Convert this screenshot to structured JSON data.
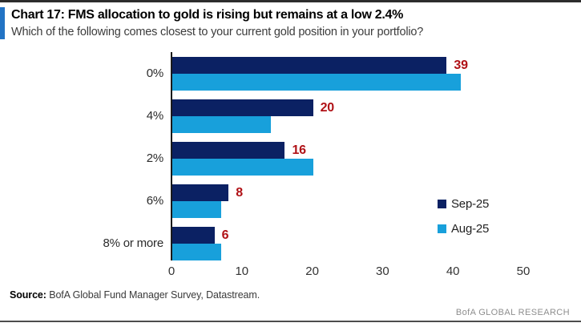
{
  "header": {
    "title": "Chart 17: FMS allocation to gold is rising but remains at a low 2.4%",
    "subtitle": "Which of the following comes closest to your current gold position in your portfolio?"
  },
  "chart_data": {
    "type": "bar",
    "orientation": "horizontal",
    "title": "Chart 17: FMS allocation to gold is rising but remains at a low 2.4%",
    "subtitle": "Which of the following comes closest to your current gold position in your portfolio?",
    "categories": [
      "0%",
      "4%",
      "2%",
      "6%",
      "8% or more"
    ],
    "series": [
      {
        "name": "Sep-25",
        "color": "#0b2163",
        "values": [
          39,
          20,
          16,
          8,
          6
        ],
        "show_data_labels": true
      },
      {
        "name": "Aug-25",
        "color": "#18a0db",
        "values": [
          41,
          14,
          20,
          7,
          7
        ],
        "show_data_labels": false
      }
    ],
    "data_labels": [
      "39",
      "20",
      "16",
      "8",
      "6"
    ],
    "data_label_color": "#b01116",
    "xlabel": "",
    "ylabel": "",
    "xticks": [
      "0",
      "10",
      "20",
      "30",
      "40",
      "50"
    ],
    "xlim": [
      0,
      50
    ],
    "grid": false,
    "legend_position": "right-middle"
  },
  "footer": {
    "source_label": "Source:",
    "source_text": " BofA Global Fund Manager Survey, Datastream.",
    "brand": "BofA GLOBAL RESEARCH"
  },
  "colors": {
    "navy": "#0b2163",
    "light_blue": "#18a0db",
    "label_red": "#b01116",
    "accent_blue": "#2273c4",
    "axis_line": "#1a1a1a"
  }
}
